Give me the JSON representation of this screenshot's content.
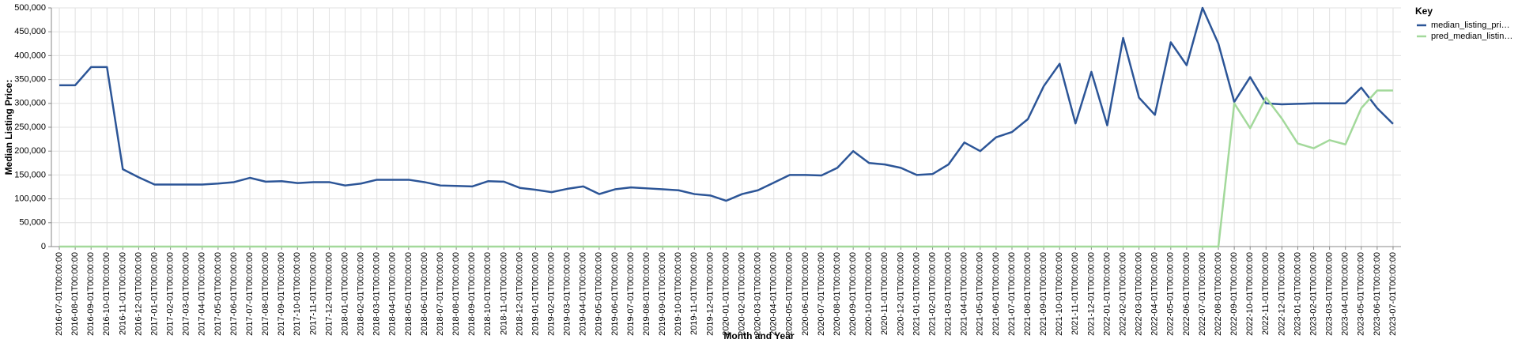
{
  "chart_data": {
    "type": "line",
    "x_label": "Month and Year",
    "y_label": "Median Listing Price:",
    "legend_title": "Key",
    "legend_position": "right",
    "grid": true,
    "categories": [
      "2016-07-01T00:00:00",
      "2016-08-01T00:00:00",
      "2016-09-01T00:00:00",
      "2016-10-01T00:00:00",
      "2016-11-01T00:00:00",
      "2016-12-01T00:00:00",
      "2017-01-01T00:00:00",
      "2017-02-01T00:00:00",
      "2017-03-01T00:00:00",
      "2017-04-01T00:00:00",
      "2017-05-01T00:00:00",
      "2017-06-01T00:00:00",
      "2017-07-01T00:00:00",
      "2017-08-01T00:00:00",
      "2017-09-01T00:00:00",
      "2017-10-01T00:00:00",
      "2017-11-01T00:00:00",
      "2017-12-01T00:00:00",
      "2018-01-01T00:00:00",
      "2018-02-01T00:00:00",
      "2018-03-01T00:00:00",
      "2018-04-01T00:00:00",
      "2018-05-01T00:00:00",
      "2018-06-01T00:00:00",
      "2018-07-01T00:00:00",
      "2018-08-01T00:00:00",
      "2018-09-01T00:00:00",
      "2018-10-01T00:00:00",
      "2018-11-01T00:00:00",
      "2018-12-01T00:00:00",
      "2019-01-01T00:00:00",
      "2019-02-01T00:00:00",
      "2019-03-01T00:00:00",
      "2019-04-01T00:00:00",
      "2019-05-01T00:00:00",
      "2019-06-01T00:00:00",
      "2019-07-01T00:00:00",
      "2019-08-01T00:00:00",
      "2019-09-01T00:00:00",
      "2019-10-01T00:00:00",
      "2019-11-01T00:00:00",
      "2019-12-01T00:00:00",
      "2020-01-01T00:00:00",
      "2020-02-01T00:00:00",
      "2020-03-01T00:00:00",
      "2020-04-01T00:00:00",
      "2020-05-01T00:00:00",
      "2020-06-01T00:00:00",
      "2020-07-01T00:00:00",
      "2020-08-01T00:00:00",
      "2020-09-01T00:00:00",
      "2020-10-01T00:00:00",
      "2020-11-01T00:00:00",
      "2020-12-01T00:00:00",
      "2021-01-01T00:00:00",
      "2021-02-01T00:00:00",
      "2021-03-01T00:00:00",
      "2021-04-01T00:00:00",
      "2021-05-01T00:00:00",
      "2021-06-01T00:00:00",
      "2021-07-01T00:00:00",
      "2021-08-01T00:00:00",
      "2021-09-01T00:00:00",
      "2021-10-01T00:00:00",
      "2021-11-01T00:00:00",
      "2021-12-01T00:00:00",
      "2022-01-01T00:00:00",
      "2022-02-01T00:00:00",
      "2022-03-01T00:00:00",
      "2022-04-01T00:00:00",
      "2022-05-01T00:00:00",
      "2022-06-01T00:00:00",
      "2022-07-01T00:00:00",
      "2022-08-01T00:00:00",
      "2022-09-01T00:00:00",
      "2022-10-01T00:00:00",
      "2022-11-01T00:00:00",
      "2022-12-01T00:00:00",
      "2023-01-01T00:00:00",
      "2023-02-01T00:00:00",
      "2023-03-01T00:00:00",
      "2023-04-01T00:00:00",
      "2023-05-01T00:00:00",
      "2023-06-01T00:00:00",
      "2023-07-01T00:00:00"
    ],
    "series": [
      {
        "name": "median_listing_pri…",
        "color": "#2c5597",
        "values": [
          338000,
          338000,
          376000,
          376000,
          162000,
          145000,
          130000,
          130000,
          130000,
          130000,
          132000,
          135000,
          144000,
          136000,
          137000,
          133000,
          135000,
          135000,
          128000,
          132000,
          140000,
          140000,
          140000,
          135000,
          128000,
          127000,
          126000,
          137000,
          136000,
          123000,
          119000,
          114000,
          121000,
          126000,
          110000,
          120000,
          124000,
          122000,
          120000,
          118000,
          110000,
          107000,
          96000,
          110000,
          118000,
          134000,
          150000,
          150000,
          149000,
          165000,
          200000,
          175000,
          172000,
          165000,
          150000,
          152000,
          172000,
          218000,
          200000,
          229000,
          240000,
          267000,
          336000,
          383000,
          258000,
          366000,
          254000,
          437000,
          312000,
          276000,
          428000,
          380000,
          500000,
          425000,
          303000,
          355000,
          300000,
          298000,
          299000,
          300000,
          300000,
          300000,
          333000,
          290000,
          257000
        ]
      },
      {
        "name": "pred_median_listin…",
        "color": "#a3d99b",
        "values": [
          0,
          0,
          0,
          0,
          0,
          0,
          0,
          0,
          0,
          0,
          0,
          0,
          0,
          0,
          0,
          0,
          0,
          0,
          0,
          0,
          0,
          0,
          0,
          0,
          0,
          0,
          0,
          0,
          0,
          0,
          0,
          0,
          0,
          0,
          0,
          0,
          0,
          0,
          0,
          0,
          0,
          0,
          0,
          0,
          0,
          0,
          0,
          0,
          0,
          0,
          0,
          0,
          0,
          0,
          0,
          0,
          0,
          0,
          0,
          0,
          0,
          0,
          0,
          0,
          0,
          0,
          0,
          0,
          0,
          0,
          0,
          0,
          0,
          0,
          300000,
          248000,
          312000,
          268000,
          216000,
          206000,
          223000,
          214000,
          290000,
          327000,
          327000
        ]
      }
    ],
    "ylim": [
      0,
      500000
    ],
    "yticks": [
      0,
      {
        "value": 50000,
        "label": "50,000"
      },
      {
        "value": 100000,
        "label": "100,000"
      },
      {
        "value": 150000,
        "label": "150,000"
      },
      {
        "value": 200000,
        "label": "200,000"
      },
      {
        "value": 250000,
        "label": "250,000"
      },
      {
        "value": 300000,
        "label": "300,000"
      },
      {
        "value": 350000,
        "label": "350,000"
      },
      {
        "value": 400000,
        "label": "400,000"
      },
      {
        "value": 450000,
        "label": "450,000"
      },
      {
        "value": 500000,
        "label": "500,000"
      }
    ]
  }
}
